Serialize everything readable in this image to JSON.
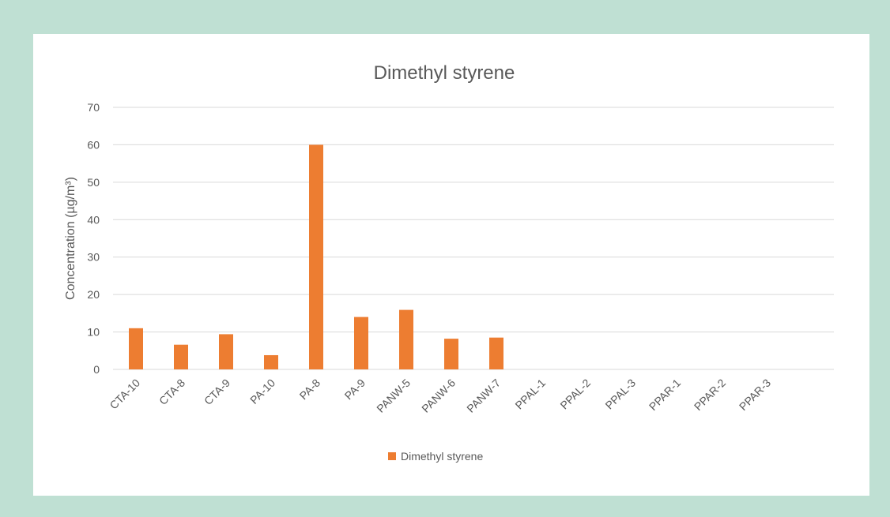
{
  "colors": {
    "background": "#bfe0d3",
    "panel": "#ffffff",
    "bar": "#ed7d31",
    "grid": "#d9d9d9",
    "text": "#595959"
  },
  "chart_data": {
    "type": "bar",
    "title": "Dimethyl styrene",
    "xlabel": "",
    "ylabel": "Concentration (µg/m³)",
    "ylim": [
      0,
      70
    ],
    "yticks": [
      0,
      10,
      20,
      30,
      40,
      50,
      60,
      70
    ],
    "grid": true,
    "legend_position": "bottom",
    "categories": [
      "CTA-10",
      "CTA-8",
      "CTA-9",
      "PA-10",
      "PA-8",
      "PA-9",
      "PANW-5",
      "PANW-6",
      "PANW-7",
      "PPAL-1",
      "PPAL-2",
      "PPAL-3",
      "PPAR-1",
      "PPAR-2",
      "PPAR-3"
    ],
    "series": [
      {
        "name": "Dimethyl styrene",
        "values": [
          11,
          6.6,
          9.4,
          3.8,
          60,
          14,
          15.9,
          8.2,
          8.5,
          0,
          0,
          0,
          0,
          0,
          0
        ]
      }
    ]
  }
}
